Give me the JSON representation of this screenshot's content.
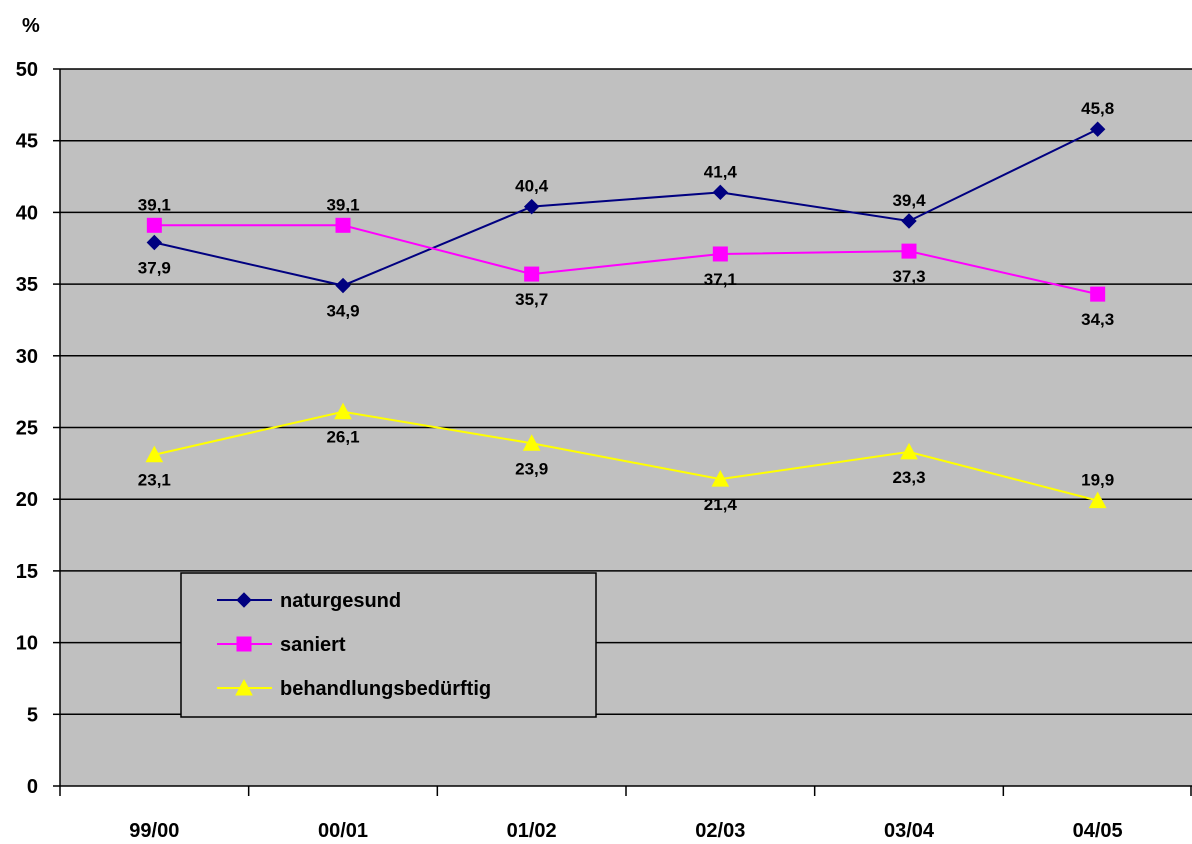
{
  "chart_data": {
    "type": "line",
    "ylabel": "%",
    "categories": [
      "99/00",
      "00/01",
      "01/02",
      "02/03",
      "03/04",
      "04/05"
    ],
    "ylim": [
      0,
      50
    ],
    "yticks": [
      0,
      5,
      10,
      15,
      20,
      25,
      30,
      35,
      40,
      45,
      50
    ],
    "grid": true,
    "legend_position": "bottom-left",
    "series": [
      {
        "name": "naturgesund",
        "color": "#000080",
        "marker": "diamond",
        "values": [
          37.9,
          34.9,
          40.4,
          41.4,
          39.4,
          45.8
        ],
        "labels": [
          "37,9",
          "34,9",
          "40,4",
          "41,4",
          "39,4",
          "45,8"
        ]
      },
      {
        "name": "saniert",
        "color": "#ff00ff",
        "marker": "square",
        "values": [
          39.1,
          39.1,
          35.7,
          37.1,
          37.3,
          34.3
        ],
        "labels": [
          "39,1",
          "39,1",
          "35,7",
          "37,1",
          "37,3",
          "34,3"
        ]
      },
      {
        "name": "behandlungsbedürftig",
        "color": "#ffff00",
        "marker": "triangle",
        "values": [
          23.1,
          26.1,
          23.9,
          21.4,
          23.3,
          19.9
        ],
        "labels": [
          "23,1",
          "26,1",
          "23,9",
          "21,4",
          "23,3",
          "19,9"
        ]
      }
    ]
  }
}
